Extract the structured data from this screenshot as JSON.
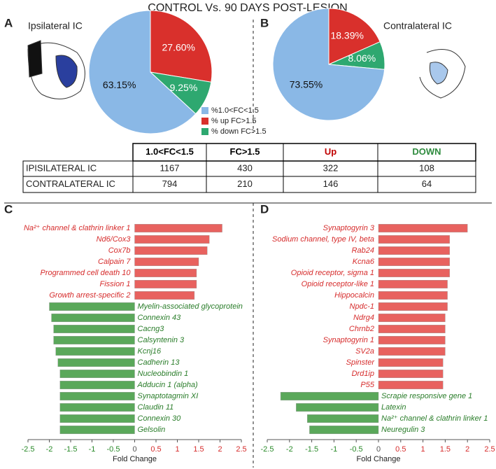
{
  "title": "CONTROL Vs. 90 DAYS POST-LESION",
  "panels": [
    "A",
    "B",
    "C",
    "D"
  ],
  "legend": {
    "items": [
      {
        "label": "%1.0<FC<1.5",
        "color": "#8ab8e6"
      },
      {
        "label": "% up FC>1.5",
        "color": "#d9302c"
      },
      {
        "label": "% down FC>1.5",
        "color": "#2ea870"
      }
    ]
  },
  "table": {
    "header": [
      "1.0<FC<1.5",
      "FC>1.5",
      "Up",
      "DOWN"
    ],
    "header_colors": [
      "#000000",
      "#000000",
      "#c00000",
      "#2e8b3e"
    ],
    "rows": [
      [
        "IPISILATERAL IC",
        "1167",
        "430",
        "322",
        "108"
      ],
      [
        "CONTRALATERAL IC",
        "794",
        "210",
        "146",
        "64"
      ]
    ]
  },
  "chart_data": [
    {
      "type": "pie",
      "title": "Ipsilateral IC",
      "values": [
        27.6,
        9.25,
        63.15
      ],
      "value_labels": [
        "27.60%",
        "9.25%",
        "63.15%"
      ],
      "colors": [
        "#d9302c",
        "#2ea870",
        "#8ab8e6"
      ]
    },
    {
      "type": "pie",
      "title": "Contralateral IC",
      "values": [
        18.39,
        8.06,
        73.55
      ],
      "value_labels": [
        "18.39%",
        "8.06%",
        "73.55%"
      ],
      "colors": [
        "#d9302c",
        "#2ea870",
        "#8ab8e6"
      ]
    },
    {
      "type": "hbar",
      "xlabel": "Fold Change",
      "xlim": [
        -2.5,
        2.5
      ],
      "xticks": [
        -2.5,
        -2,
        -1.5,
        -1,
        -0.5,
        0,
        0.5,
        1,
        1.5,
        2,
        2.5
      ],
      "colors": [
        "#e8625f",
        "#5aa85a"
      ],
      "categories": [
        "Na²⁺ channel & clathrin linker 1",
        "Nd6/Cox3",
        "Cox7b",
        "Calpain 7",
        "Programmed cell death 10",
        "Fission 1",
        "Growth arrest-specific 2",
        "Myelin-associated glycoprotein",
        "Connexin 43",
        "Cacng3",
        "Calsyntenin 3",
        "Kcnj16",
        "Cadherin 13",
        "Nucleobindin 1",
        "Adducin 1 (alpha)",
        "Synaptotagmin XI",
        "Claudin 11",
        "Connexin 30",
        "Gelsolin"
      ],
      "values": [
        2.05,
        1.75,
        1.7,
        1.5,
        1.45,
        1.45,
        1.4,
        -2.0,
        -1.95,
        -1.9,
        -1.9,
        -1.85,
        -1.8,
        -1.75,
        -1.75,
        -1.75,
        -1.75,
        -1.75,
        -1.75
      ]
    },
    {
      "type": "hbar",
      "xlabel": "Fold Change",
      "xlim": [
        -2.5,
        2.5
      ],
      "xticks": [
        -2.5,
        -2,
        -1.5,
        -1,
        -0.5,
        0,
        0.5,
        1,
        1.5,
        2,
        2.5
      ],
      "colors": [
        "#e8625f",
        "#5aa85a"
      ],
      "categories": [
        "Synaptogyrin 3",
        "Sodium channel, type IV, beta",
        "Rab24",
        "Kcna6",
        "Opioid receptor, sigma 1",
        "Opioid receptor-like 1",
        "Hippocalcin",
        "Npdc-1",
        "Ndrg4",
        "Chrnb2",
        "Synaptogyrin 1",
        "SV2a",
        "Spinster",
        "Drd1ip",
        "P55",
        "Scrapie responsive gene 1",
        "Latexin",
        "Na²⁺ channel & clathrin linker 1",
        "Neuregulin 3"
      ],
      "values": [
        2.0,
        1.6,
        1.6,
        1.6,
        1.6,
        1.55,
        1.55,
        1.55,
        1.5,
        1.5,
        1.5,
        1.5,
        1.45,
        1.45,
        1.45,
        -2.2,
        -1.85,
        -1.6,
        -1.55
      ]
    }
  ]
}
